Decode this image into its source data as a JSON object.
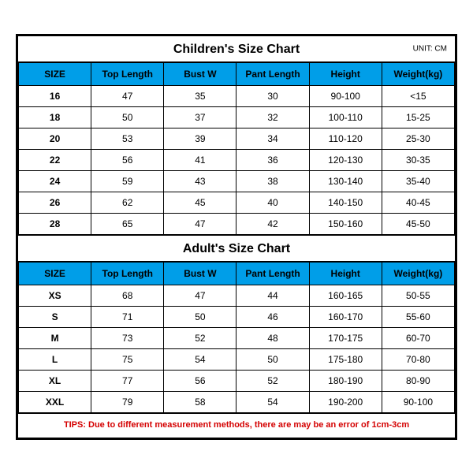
{
  "colors": {
    "header_bg": "#009ee8",
    "border": "#000000",
    "text": "#000000",
    "tips": "#d40000",
    "background": "#ffffff"
  },
  "children": {
    "title": "Children's Size Chart",
    "unit": "UNIT: CM",
    "columns": [
      "SIZE",
      "Top Length",
      "Bust W",
      "Pant Length",
      "Height",
      "Weight(kg)"
    ],
    "rows": [
      [
        "16",
        "47",
        "35",
        "30",
        "90-100",
        "<15"
      ],
      [
        "18",
        "50",
        "37",
        "32",
        "100-110",
        "15-25"
      ],
      [
        "20",
        "53",
        "39",
        "34",
        "110-120",
        "25-30"
      ],
      [
        "22",
        "56",
        "41",
        "36",
        "120-130",
        "30-35"
      ],
      [
        "24",
        "59",
        "43",
        "38",
        "130-140",
        "35-40"
      ],
      [
        "26",
        "62",
        "45",
        "40",
        "140-150",
        "40-45"
      ],
      [
        "28",
        "65",
        "47",
        "42",
        "150-160",
        "45-50"
      ]
    ]
  },
  "adult": {
    "title": "Adult's Size Chart",
    "columns": [
      "SIZE",
      "Top Length",
      "Bust W",
      "Pant Length",
      "Height",
      "Weight(kg)"
    ],
    "rows": [
      [
        "XS",
        "68",
        "47",
        "44",
        "160-165",
        "50-55"
      ],
      [
        "S",
        "71",
        "50",
        "46",
        "160-170",
        "55-60"
      ],
      [
        "M",
        "73",
        "52",
        "48",
        "170-175",
        "60-70"
      ],
      [
        "L",
        "75",
        "54",
        "50",
        "175-180",
        "70-80"
      ],
      [
        "XL",
        "77",
        "56",
        "52",
        "180-190",
        "80-90"
      ],
      [
        "XXL",
        "79",
        "58",
        "54",
        "190-200",
        "90-100"
      ]
    ]
  },
  "tips": "TIPS: Due to different measurement methods, there are may be an error of 1cm-3cm"
}
